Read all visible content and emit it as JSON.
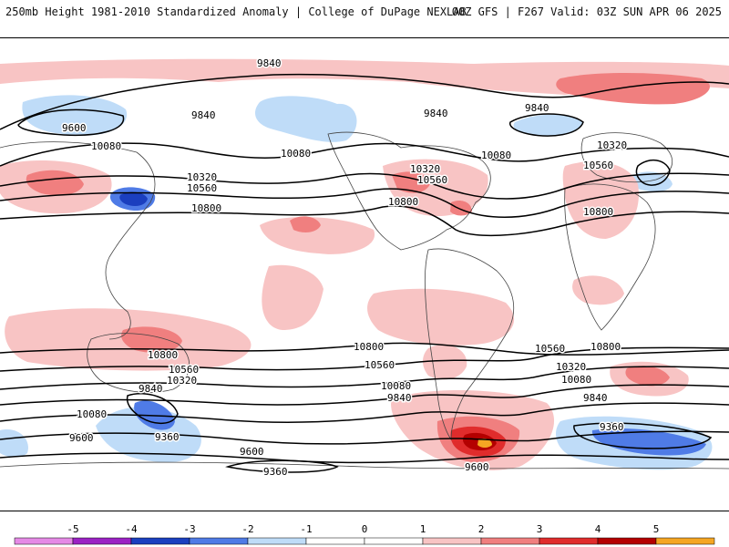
{
  "header": {
    "left": "250mb Height 1981-2010 Standardized Anomaly | College of DuPage NEXLAB",
    "right": "00Z GFS | F267 Valid: 03Z SUN APR 06 2025"
  },
  "colors": {
    "neg5": "#e58ae6",
    "neg4": "#9b22c4",
    "neg3": "#1b3fbf",
    "neg2": "#4f7be6",
    "neg1": "#bfdcf8",
    "pos1": "#f8c4c4",
    "pos2": "#f07f7f",
    "pos3": "#e02c2c",
    "pos4": "#b40000",
    "pos5": "#f5a623",
    "line": "#000000",
    "coast": "#444444"
  },
  "colorbar": {
    "ticks": [
      "-5",
      "-4",
      "-3",
      "-2",
      "-1",
      "0",
      "1",
      "2",
      "3",
      "4",
      "5"
    ]
  },
  "contour_labels": [
    "9840",
    "9840",
    "9600",
    "9840",
    "10080",
    "10080",
    "10320",
    "10560",
    "10800",
    "10320",
    "10560",
    "10800",
    "10080",
    "10800",
    "9840",
    "10320",
    "10560",
    "10800",
    "10800",
    "10560",
    "10800",
    "10560",
    "10320",
    "10080",
    "9840",
    "9600",
    "9360",
    "9600",
    "9360",
    "10560",
    "10320",
    "10080",
    "9840",
    "9600",
    "9360",
    "10080",
    "9840"
  ]
}
